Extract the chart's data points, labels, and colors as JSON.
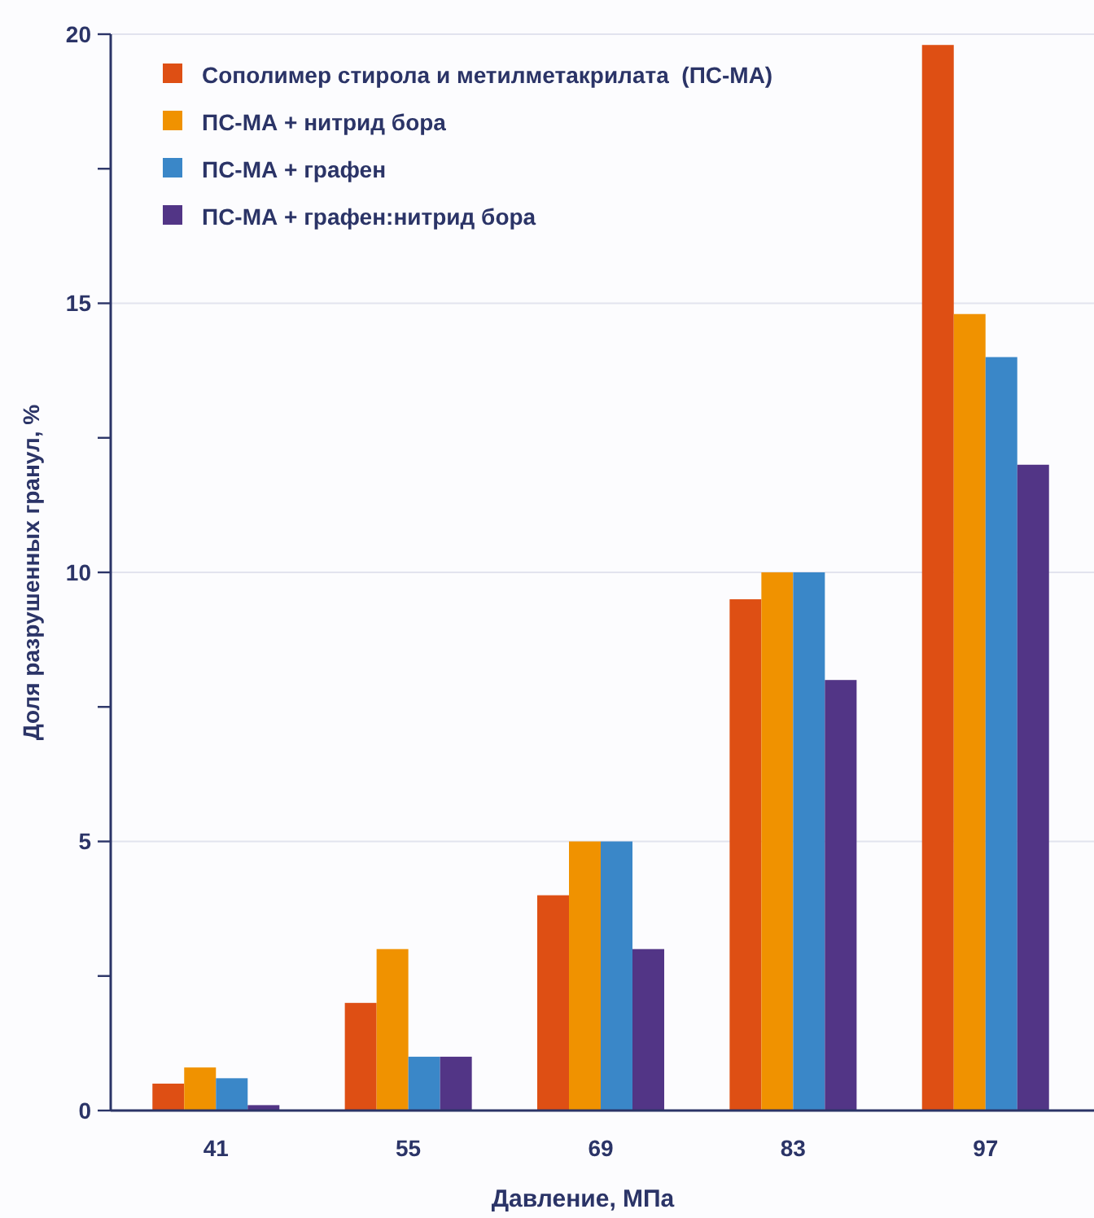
{
  "chart_data": {
    "type": "bar",
    "xlabel": "Давление, МПа",
    "ylabel": "Доля разрушенных гранул, %",
    "categories": [
      "41",
      "55",
      "69",
      "83",
      "97"
    ],
    "series": [
      {
        "name": "Сополимер стирола и метилметакрилата  (ПС-МА)",
        "color": "#de4f14",
        "values": [
          0.5,
          2,
          4,
          9.5,
          19.8
        ]
      },
      {
        "name": "ПС-МА + нитрид бора",
        "color": "#f09200",
        "values": [
          0.8,
          3,
          5,
          10,
          14.8
        ]
      },
      {
        "name": "ПС-МА + графен",
        "color": "#3a87c8",
        "values": [
          0.6,
          1,
          5,
          10,
          14
        ]
      },
      {
        "name": "ПС-МА + графен:нитрид бора",
        "color": "#523586",
        "values": [
          0.1,
          1,
          3,
          8,
          12
        ]
      }
    ],
    "ylim": [
      0,
      20
    ],
    "yticks": [
      0,
      {
        "value": 2.5,
        "label": null
      },
      5,
      {
        "value": 7.5,
        "label": null
      },
      10,
      {
        "value": 12.5,
        "label": null
      },
      15,
      {
        "value": 17.5,
        "label": null
      },
      20
    ],
    "grid": "y",
    "legend": "top left"
  }
}
